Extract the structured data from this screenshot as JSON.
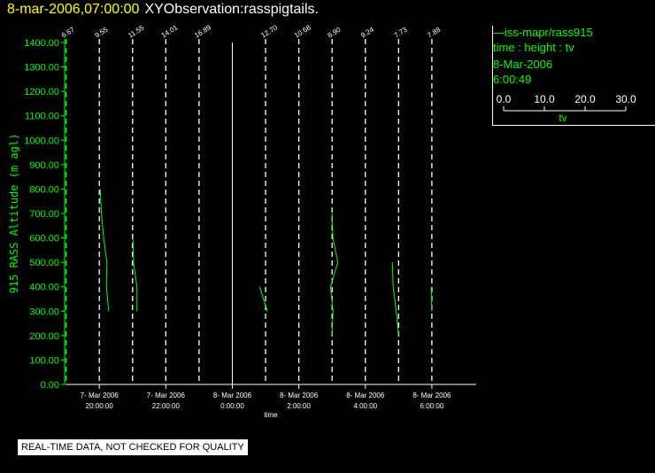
{
  "header": {
    "date_time": "8-mar-2006,07:00:00",
    "plot_title": "XYObservation:rasspigtails."
  },
  "legend": {
    "series": "—iss-mapr/rass915",
    "variables": "time : height : tv",
    "date": "8-Mar-2006",
    "time": "6:00:49",
    "scale_ticks": [
      "0.0",
      "10.0",
      "20.0",
      "30.0"
    ],
    "scale_label": "tv"
  },
  "footer": {
    "note": "REAL-TIME DATA, NOT CHECKED FOR QUALITY"
  },
  "chart_data": {
    "type": "line",
    "ylabel": "915 RASS Altitude (m agl)",
    "xlabel": "time",
    "ylim": [
      0,
      1400
    ],
    "yticks": [
      "0.00",
      "100.00",
      "200.00",
      "300.00",
      "400.00",
      "500.00",
      "600.00",
      "700.00",
      "800.00",
      "900.00",
      "1000.00",
      "1100.00",
      "1200.00",
      "1300.00",
      "1400.00"
    ],
    "xlim": [
      "2006-03-07 18:59",
      "2006-03-08 07:20"
    ],
    "xticks": [
      {
        "time": "2006-03-07 20:00",
        "line1": "7- Mar 2006",
        "line2": "20:00:00"
      },
      {
        "time": "2006-03-07 22:00",
        "line1": "7- Mar 2006",
        "line2": "22:00:00"
      },
      {
        "time": "2006-03-08 00:00",
        "line1": "8- Mar 2006",
        "line2": "0:00:00"
      },
      {
        "time": "2006-03-08 02:00",
        "line1": "8- Mar 2006",
        "line2": "2:00:00"
      },
      {
        "time": "2006-03-08 04:00",
        "line1": "8- Mar 2006",
        "line2": "4:00:00"
      },
      {
        "time": "2006-03-08 06:00",
        "line1": "8- Mar 2006",
        "line2": "6:00:00"
      }
    ],
    "colors": {
      "profile": "#00ff00",
      "reference": "#ffffff"
    },
    "profiles": [
      {
        "time": "2006-03-07 19:00",
        "label": "6.67",
        "points": []
      },
      {
        "time": "2006-03-07 20:00",
        "label": "9.55",
        "points": [
          [
            800,
            0.6
          ],
          [
            700,
            1.4
          ],
          [
            600,
            2.8
          ],
          [
            500,
            4.9
          ],
          [
            400,
            4.6
          ],
          [
            300,
            6.0
          ]
        ]
      },
      {
        "time": "2006-03-07 21:00",
        "label": "11.55",
        "points": [
          [
            600,
            0.3
          ],
          [
            500,
            0.6
          ],
          [
            400,
            2.8
          ],
          [
            300,
            2.8
          ]
        ]
      },
      {
        "time": "2006-03-07 22:00",
        "label": "14.01",
        "points": []
      },
      {
        "time": "2006-03-07 23:00",
        "label": "16.89",
        "points": []
      },
      {
        "time": "2006-03-08 01:00",
        "label": "12.70",
        "points": [
          [
            400,
            -3.8
          ],
          [
            300,
            1.1
          ]
        ]
      },
      {
        "time": "2006-03-08 02:00",
        "label": "10.68",
        "points": []
      },
      {
        "time": "2006-03-08 03:00",
        "label": "8.90",
        "points": [
          [
            700,
            0.0
          ],
          [
            600,
            0.5
          ],
          [
            500,
            3.7
          ],
          [
            400,
            -1.0
          ],
          [
            300,
            0.6
          ],
          [
            200,
            0.0
          ]
        ]
      },
      {
        "time": "2006-03-08 04:00",
        "label": "9.24",
        "points": []
      },
      {
        "time": "2006-03-08 05:00",
        "label": "7.73",
        "points": [
          [
            500,
            -4.0
          ],
          [
            400,
            -3.5
          ],
          [
            300,
            -1.5
          ],
          [
            200,
            0.0
          ]
        ]
      },
      {
        "time": "2006-03-08 06:00",
        "label": "7.88",
        "points": [
          [
            400,
            -0.4
          ],
          [
            300,
            0.0
          ]
        ]
      }
    ],
    "solid_reference": "2006-03-08 00:00"
  }
}
